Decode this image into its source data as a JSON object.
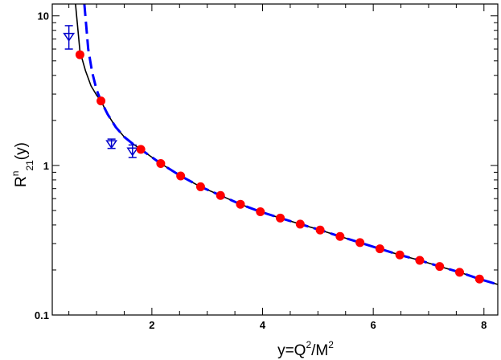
{
  "chart_data": {
    "type": "scatter",
    "title": "",
    "xlabel": {
      "base": "y=Q",
      "sup1": "2",
      "mid": "/M",
      "sup2": "2"
    },
    "ylabel": {
      "base": "R",
      "sup": "n",
      "sub": "21",
      "tail": "(y)"
    },
    "x_scale": "linear",
    "y_scale": "log",
    "xlim": [
      0.2,
      8.25
    ],
    "ylim": [
      0.1,
      12
    ],
    "x_ticks": [
      {
        "value": 2,
        "label": "2"
      },
      {
        "value": 4,
        "label": "4"
      },
      {
        "value": 6,
        "label": "6"
      },
      {
        "value": 8,
        "label": "8"
      }
    ],
    "y_ticks": [
      {
        "value": 0.1,
        "label": "0.1"
      },
      {
        "value": 1,
        "label": "1"
      },
      {
        "value": 10,
        "label": "10"
      }
    ],
    "grid": false,
    "legend": "none",
    "series": [
      {
        "kind": "points",
        "color": "#ff0000",
        "marker": "circle",
        "x": [
          0.7,
          1.08,
          1.8,
          2.16,
          2.52,
          2.88,
          3.24,
          3.6,
          3.96,
          4.32,
          4.68,
          5.04,
          5.4,
          5.76,
          6.12,
          6.48,
          6.84,
          7.2,
          7.56,
          7.92
        ],
        "y": [
          5.5,
          2.7,
          1.28,
          1.03,
          0.85,
          0.72,
          0.63,
          0.55,
          0.49,
          0.445,
          0.405,
          0.37,
          0.335,
          0.305,
          0.277,
          0.252,
          0.232,
          0.211,
          0.193,
          0.174
        ]
      },
      {
        "kind": "points_with_error",
        "color": "#0000cc",
        "marker": "triangle-down-open",
        "x": [
          0.5,
          1.27,
          1.65
        ],
        "y": [
          7.3,
          1.4,
          1.25
        ],
        "err": [
          1.3,
          0.1,
          0.12
        ]
      },
      {
        "kind": "line",
        "color": "#000000",
        "style": "solid",
        "x": [
          0.62,
          0.7,
          0.8,
          0.9,
          1.0,
          1.08,
          1.2,
          1.35,
          1.5,
          1.65,
          1.8,
          2.16,
          2.52,
          2.88,
          3.24,
          3.6,
          3.96,
          4.32,
          4.68,
          5.04,
          5.4,
          5.76,
          6.12,
          6.48,
          6.84,
          7.2,
          7.56,
          7.92,
          8.25
        ],
        "y": [
          12,
          5.8,
          4.3,
          3.4,
          2.95,
          2.7,
          2.2,
          1.8,
          1.55,
          1.4,
          1.28,
          1.03,
          0.85,
          0.72,
          0.63,
          0.55,
          0.49,
          0.445,
          0.405,
          0.37,
          0.335,
          0.305,
          0.277,
          0.252,
          0.232,
          0.211,
          0.193,
          0.174,
          0.16
        ]
      },
      {
        "kind": "line",
        "color": "#0000ff",
        "style": "dashed",
        "x": [
          0.78,
          0.85,
          0.92,
          1.0,
          1.08,
          1.2,
          1.35,
          1.5,
          1.65,
          1.8,
          2.16,
          2.52,
          2.88,
          3.24,
          3.6,
          3.96,
          4.32,
          4.68,
          5.04,
          5.4,
          5.76,
          6.12,
          6.48,
          6.84,
          7.2,
          7.56,
          7.92,
          8.25
        ],
        "y": [
          12,
          6.0,
          4.2,
          3.2,
          2.7,
          2.2,
          1.8,
          1.55,
          1.4,
          1.28,
          1.03,
          0.85,
          0.72,
          0.63,
          0.55,
          0.49,
          0.445,
          0.405,
          0.37,
          0.335,
          0.305,
          0.277,
          0.252,
          0.232,
          0.211,
          0.193,
          0.174,
          0.16
        ]
      }
    ]
  }
}
